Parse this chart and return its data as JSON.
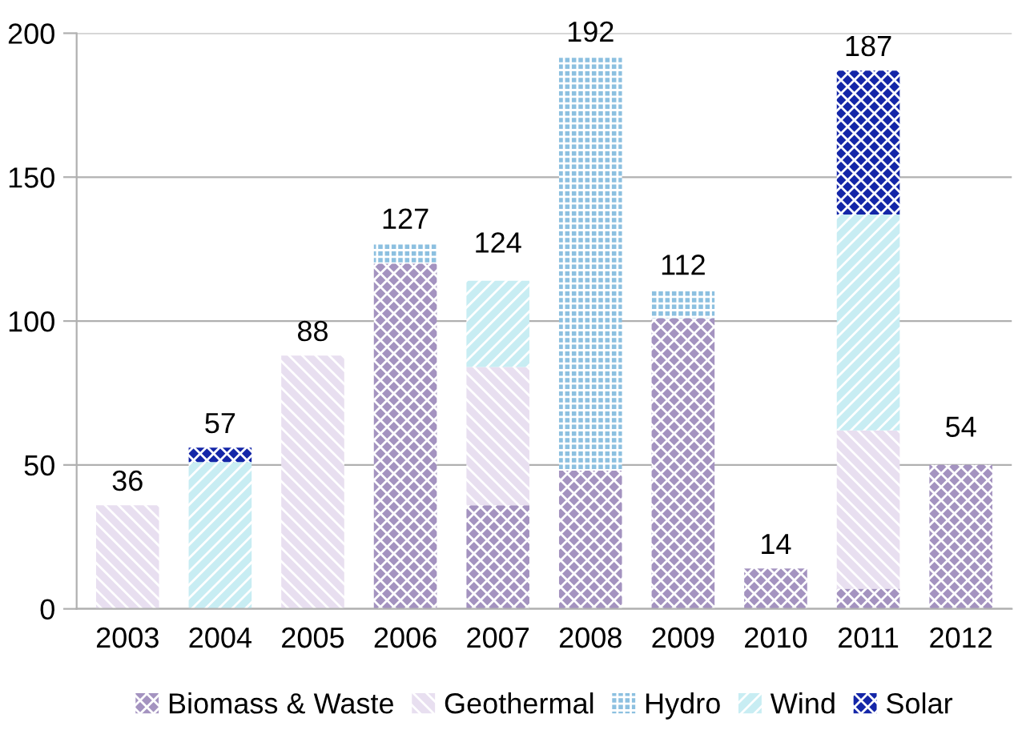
{
  "chart_data": {
    "type": "bar",
    "stacked": true,
    "categories": [
      "2003",
      "2004",
      "2005",
      "2006",
      "2007",
      "2008",
      "2009",
      "2010",
      "2011",
      "2012"
    ],
    "series": [
      {
        "name": "Biomass & Waste",
        "color": "#a493c0",
        "values": [
          null,
          null,
          null,
          120,
          36,
          48,
          101,
          14,
          7,
          50
        ]
      },
      {
        "name": "Geothermal",
        "color": "#e8dff0",
        "values": [
          36,
          null,
          88,
          null,
          48,
          null,
          null,
          null,
          55,
          null
        ]
      },
      {
        "name": "Hydro",
        "color": "#8cc0e0",
        "values": [
          null,
          null,
          null,
          7,
          null,
          144,
          10,
          null,
          null,
          null
        ]
      },
      {
        "name": "Wind",
        "color": "#c8edf3",
        "values": [
          null,
          51,
          null,
          null,
          30,
          null,
          null,
          null,
          75,
          null
        ]
      },
      {
        "name": "Solar",
        "color": "#1426a8",
        "values": [
          null,
          5,
          null,
          null,
          null,
          null,
          null,
          null,
          50,
          null
        ]
      }
    ],
    "totals": [
      "36",
      "57",
      "88",
      "127",
      null,
      "192",
      "112",
      "14",
      "187",
      null
    ],
    "annotations": [
      {
        "text": "124",
        "x": "2007",
        "y": 114
      },
      {
        "text": "54",
        "x": "2012",
        "y": 50
      }
    ],
    "ylim": [
      0,
      200
    ],
    "yticks": [
      0,
      50,
      100,
      150,
      200
    ],
    "grid": "y",
    "legend": "bottom"
  }
}
